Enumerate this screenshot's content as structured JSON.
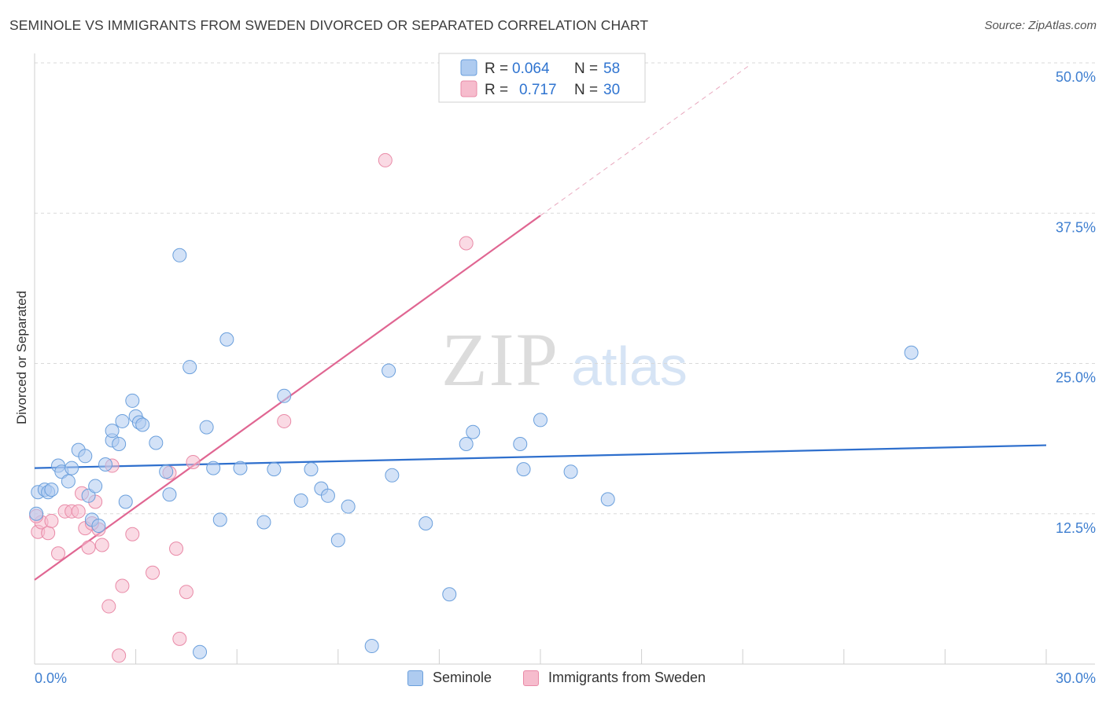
{
  "title": "SEMINOLE VS IMMIGRANTS FROM SWEDEN DIVORCED OR SEPARATED CORRELATION CHART",
  "source": "Source: ZipAtlas.com",
  "watermark": {
    "zip": "ZIP",
    "atlas": "atlas"
  },
  "legend_top": {
    "rows": [
      {
        "r_label": "R = ",
        "r_value": "0.064",
        "n_label": "N = ",
        "n_value": "58"
      },
      {
        "r_label": "R = ",
        "r_value": "0.717",
        "n_label": "N = ",
        "n_value": "30"
      }
    ]
  },
  "legend_bottom": {
    "items": [
      "Seminole",
      "Immigrants from Sweden"
    ]
  },
  "colors": {
    "seminole_fill": "#aecbf0",
    "seminole_stroke": "#6a9fdc",
    "seminole_line": "#2e6fcd",
    "sweden_fill": "#f6bccd",
    "sweden_stroke": "#e98aa7",
    "sweden_line": "#e06692",
    "tick_text": "#3f7fd0",
    "grid": "#d9d9d9"
  },
  "chart_data": {
    "type": "scatter",
    "title": "SEMINOLE VS IMMIGRANTS FROM SWEDEN DIVORCED OR SEPARATED CORRELATION CHART",
    "xlabel": "",
    "ylabel": "Divorced or Separated",
    "xlim": [
      0,
      30
    ],
    "ylim": [
      0,
      50
    ],
    "x_tick_labels": [
      "0.0%",
      "30.0%"
    ],
    "y_tick_labels": [
      "12.5%",
      "25.0%",
      "37.5%",
      "50.0%"
    ],
    "y_ticks": [
      12.5,
      25.0,
      37.5,
      50.0
    ],
    "grid": true,
    "legend_position": "top-center",
    "series": [
      {
        "name": "Seminole",
        "R": 0.064,
        "N": 58,
        "trend": {
          "x": [
            0,
            30
          ],
          "y": [
            16.3,
            18.2
          ]
        },
        "points": [
          [
            0.1,
            14.3
          ],
          [
            0.3,
            14.5
          ],
          [
            0.4,
            14.3
          ],
          [
            0.5,
            14.5
          ],
          [
            0.7,
            16.5
          ],
          [
            0.8,
            16.0
          ],
          [
            1.0,
            15.2
          ],
          [
            1.1,
            16.3
          ],
          [
            1.3,
            17.8
          ],
          [
            1.5,
            17.3
          ],
          [
            1.6,
            14.0
          ],
          [
            1.7,
            12.0
          ],
          [
            1.8,
            14.8
          ],
          [
            1.9,
            11.5
          ],
          [
            2.1,
            16.6
          ],
          [
            2.3,
            18.6
          ],
          [
            2.3,
            19.4
          ],
          [
            2.5,
            18.3
          ],
          [
            2.6,
            20.2
          ],
          [
            2.7,
            13.5
          ],
          [
            2.9,
            21.9
          ],
          [
            3.0,
            20.6
          ],
          [
            3.1,
            20.1
          ],
          [
            3.2,
            19.9
          ],
          [
            3.6,
            18.4
          ],
          [
            3.9,
            16.0
          ],
          [
            4.0,
            14.1
          ],
          [
            4.3,
            34.0
          ],
          [
            4.6,
            24.7
          ],
          [
            4.9,
            1.0
          ],
          [
            5.1,
            19.7
          ],
          [
            5.3,
            16.3
          ],
          [
            5.5,
            12.0
          ],
          [
            5.7,
            27.0
          ],
          [
            6.1,
            16.3
          ],
          [
            6.8,
            11.8
          ],
          [
            7.1,
            16.2
          ],
          [
            7.4,
            22.3
          ],
          [
            7.9,
            13.6
          ],
          [
            8.2,
            16.2
          ],
          [
            8.5,
            14.6
          ],
          [
            8.7,
            14.0
          ],
          [
            9.0,
            10.3
          ],
          [
            9.3,
            13.1
          ],
          [
            10.0,
            1.5
          ],
          [
            10.5,
            24.4
          ],
          [
            10.6,
            15.7
          ],
          [
            11.6,
            11.7
          ],
          [
            12.3,
            5.8
          ],
          [
            12.8,
            18.3
          ],
          [
            13.0,
            19.3
          ],
          [
            14.4,
            18.3
          ],
          [
            14.5,
            16.2
          ],
          [
            15.0,
            20.3
          ],
          [
            15.9,
            16.0
          ],
          [
            17.0,
            13.7
          ],
          [
            26.0,
            25.9
          ],
          [
            0.05,
            12.5
          ]
        ]
      },
      {
        "name": "Immigrants from Sweden",
        "R": 0.717,
        "N": 30,
        "trend": {
          "x": [
            0,
            15
          ],
          "y": [
            7.0,
            37.3
          ]
        },
        "trend_dashed": {
          "x": [
            15,
            21.2
          ],
          "y": [
            37.3,
            49.8
          ]
        },
        "points": [
          [
            0.1,
            11.0
          ],
          [
            0.2,
            11.8
          ],
          [
            0.4,
            10.9
          ],
          [
            0.5,
            11.9
          ],
          [
            0.7,
            9.2
          ],
          [
            0.9,
            12.7
          ],
          [
            1.1,
            12.7
          ],
          [
            1.3,
            12.7
          ],
          [
            1.4,
            14.2
          ],
          [
            1.5,
            11.3
          ],
          [
            1.6,
            9.7
          ],
          [
            1.8,
            13.5
          ],
          [
            1.9,
            11.2
          ],
          [
            2.0,
            9.9
          ],
          [
            2.2,
            4.8
          ],
          [
            2.3,
            16.5
          ],
          [
            2.5,
            0.7
          ],
          [
            2.6,
            6.5
          ],
          [
            2.9,
            10.8
          ],
          [
            3.5,
            7.6
          ],
          [
            4.0,
            15.9
          ],
          [
            4.2,
            9.6
          ],
          [
            4.3,
            2.1
          ],
          [
            4.5,
            6.0
          ],
          [
            4.7,
            16.8
          ],
          [
            7.4,
            20.2
          ],
          [
            10.4,
            41.9
          ],
          [
            12.8,
            35.0
          ],
          [
            0.05,
            12.3
          ],
          [
            1.7,
            11.7
          ]
        ]
      }
    ]
  }
}
